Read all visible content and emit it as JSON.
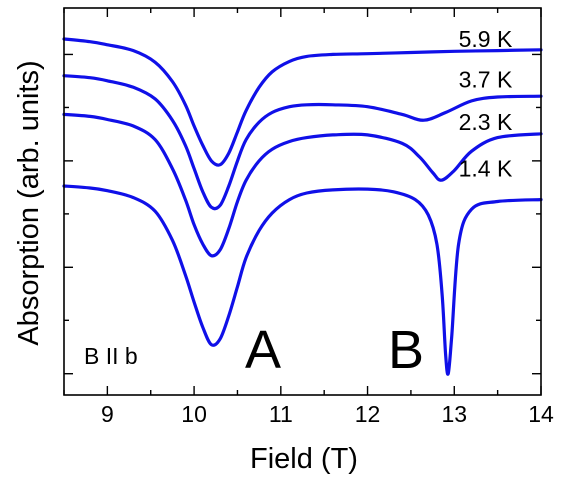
{
  "chart_data": {
    "type": "line",
    "title": "",
    "xlabel": "Field (T)",
    "ylabel": "Absorption (arb. units)",
    "xlim": [
      8.5,
      14
    ],
    "ylim": [
      0,
      10
    ],
    "xticks": [
      "9",
      "10",
      "11",
      "12",
      "13",
      "14"
    ],
    "xtick_values": [
      9,
      10,
      11,
      12,
      13,
      14
    ],
    "yticks_labeled": false,
    "annotations": {
      "orientation": "B II b",
      "peak_a": "A",
      "peak_b": "B"
    },
    "series": [
      {
        "name": "5.9 K",
        "label_at": [
          13.05,
          9.2
        ],
        "x": [
          8.5,
          8.8,
          9.0,
          9.3,
          9.55,
          9.75,
          9.9,
          10.0,
          10.1,
          10.2,
          10.3,
          10.4,
          10.5,
          10.6,
          10.75,
          10.9,
          11.1,
          11.3,
          11.6,
          12.0,
          12.5,
          13.0,
          13.5,
          14.0
        ],
        "y": [
          9.2,
          9.13,
          9.05,
          8.9,
          8.6,
          8.1,
          7.5,
          6.95,
          6.45,
          6.05,
          5.95,
          6.25,
          6.8,
          7.35,
          7.95,
          8.35,
          8.62,
          8.75,
          8.8,
          8.82,
          8.85,
          8.88,
          8.9,
          8.92
        ]
      },
      {
        "name": "3.7 K",
        "label_at": [
          13.05,
          8.15
        ],
        "x": [
          8.5,
          8.8,
          9.0,
          9.3,
          9.55,
          9.75,
          9.9,
          10.0,
          10.1,
          10.2,
          10.3,
          10.4,
          10.5,
          10.6,
          10.75,
          10.9,
          11.1,
          11.3,
          11.6,
          12.0,
          12.4,
          12.65,
          12.9,
          13.2,
          13.5,
          14.0
        ],
        "y": [
          8.25,
          8.2,
          8.12,
          7.95,
          7.65,
          7.1,
          6.45,
          5.85,
          5.25,
          4.85,
          4.9,
          5.4,
          6.05,
          6.6,
          7.05,
          7.3,
          7.45,
          7.5,
          7.5,
          7.45,
          7.25,
          7.1,
          7.3,
          7.6,
          7.7,
          7.72
        ]
      },
      {
        "name": "2.3 K",
        "label_at": [
          13.05,
          7.05
        ],
        "x": [
          8.5,
          8.8,
          9.0,
          9.3,
          9.55,
          9.75,
          9.9,
          10.0,
          10.1,
          10.2,
          10.3,
          10.4,
          10.5,
          10.6,
          10.75,
          10.9,
          11.1,
          11.3,
          11.6,
          12.0,
          12.4,
          12.6,
          12.75,
          12.85,
          13.0,
          13.2,
          13.5,
          14.0
        ],
        "y": [
          7.25,
          7.2,
          7.12,
          6.95,
          6.6,
          5.85,
          5.05,
          4.4,
          3.9,
          3.6,
          3.75,
          4.3,
          5.0,
          5.55,
          6.05,
          6.35,
          6.55,
          6.65,
          6.72,
          6.72,
          6.5,
          6.15,
          5.75,
          5.55,
          5.8,
          6.3,
          6.65,
          6.75
        ]
      },
      {
        "name": "1.4 K",
        "label_at": [
          13.05,
          5.85
        ],
        "x": [
          8.5,
          8.8,
          9.0,
          9.3,
          9.55,
          9.75,
          9.9,
          10.0,
          10.1,
          10.2,
          10.3,
          10.4,
          10.5,
          10.6,
          10.75,
          10.9,
          11.1,
          11.3,
          11.6,
          12.0,
          12.3,
          12.55,
          12.7,
          12.8,
          12.86,
          12.9,
          12.93,
          12.97,
          13.05,
          13.2,
          13.5,
          14.0
        ],
        "y": [
          5.4,
          5.35,
          5.28,
          5.1,
          4.75,
          4.0,
          3.1,
          2.4,
          1.75,
          1.3,
          1.45,
          2.05,
          2.8,
          3.55,
          4.25,
          4.7,
          5.05,
          5.22,
          5.3,
          5.32,
          5.25,
          5.05,
          4.65,
          3.9,
          2.6,
          1.05,
          0.55,
          1.5,
          3.9,
          4.8,
          5.0,
          5.05
        ]
      }
    ],
    "colors": {
      "curve": "#1010e8",
      "axis": "#000000"
    }
  }
}
